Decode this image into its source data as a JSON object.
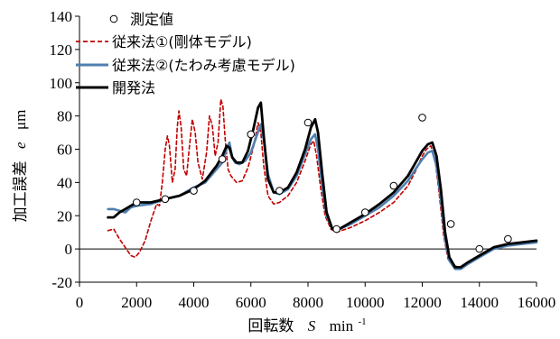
{
  "chart_data": {
    "type": "line",
    "xlabel": "回転数",
    "xlabel_symbol": "S",
    "xlabel_unit": "min",
    "xlabel_unit_exp": "-1",
    "ylabel": "加工誤差",
    "ylabel_symbol": "e",
    "ylabel_unit": "μm",
    "xlim": [
      0,
      16000
    ],
    "ylim": [
      -20,
      140
    ],
    "x_ticks": [
      0,
      2000,
      4000,
      6000,
      8000,
      10000,
      12000,
      14000,
      16000
    ],
    "y_ticks": [
      -20,
      0,
      20,
      40,
      60,
      80,
      100,
      120,
      140
    ],
    "legend_position": "top-left",
    "series": [
      {
        "name": "測定値",
        "kind": "scatter",
        "color": "#000000",
        "points": [
          [
            2000,
            28
          ],
          [
            3000,
            30
          ],
          [
            4000,
            35
          ],
          [
            5000,
            54
          ],
          [
            6000,
            69
          ],
          [
            7000,
            35
          ],
          [
            8000,
            76
          ],
          [
            9000,
            12
          ],
          [
            10000,
            22
          ],
          [
            11000,
            38
          ],
          [
            12000,
            79
          ],
          [
            13000,
            15
          ],
          [
            14000,
            0
          ],
          [
            15000,
            6
          ]
        ]
      },
      {
        "name": "従来法①(剛体モデル)",
        "kind": "line",
        "dash": "dashed",
        "color": "#c00000",
        "points": [
          [
            1000,
            11
          ],
          [
            1200,
            12
          ],
          [
            1400,
            6
          ],
          [
            1600,
            1
          ],
          [
            1800,
            -4
          ],
          [
            1950,
            -5
          ],
          [
            2100,
            -2
          ],
          [
            2300,
            5
          ],
          [
            2500,
            17
          ],
          [
            2700,
            27
          ],
          [
            2800,
            26
          ],
          [
            2900,
            40
          ],
          [
            3000,
            60
          ],
          [
            3080,
            68
          ],
          [
            3150,
            62
          ],
          [
            3250,
            40
          ],
          [
            3350,
            48
          ],
          [
            3420,
            73
          ],
          [
            3480,
            83
          ],
          [
            3560,
            73
          ],
          [
            3650,
            48
          ],
          [
            3750,
            44
          ],
          [
            3850,
            62
          ],
          [
            3950,
            78
          ],
          [
            4050,
            70
          ],
          [
            4150,
            52
          ],
          [
            4300,
            42
          ],
          [
            4450,
            58
          ],
          [
            4550,
            80
          ],
          [
            4650,
            74
          ],
          [
            4750,
            56
          ],
          [
            4850,
            64
          ],
          [
            4950,
            90
          ],
          [
            5020,
            86
          ],
          [
            5100,
            66
          ],
          [
            5200,
            48
          ],
          [
            5300,
            44
          ],
          [
            5500,
            40
          ],
          [
            5700,
            41
          ],
          [
            5900,
            49
          ],
          [
            6100,
            62
          ],
          [
            6250,
            76
          ],
          [
            6350,
            70
          ],
          [
            6450,
            50
          ],
          [
            6600,
            32
          ],
          [
            6800,
            27
          ],
          [
            7000,
            28
          ],
          [
            7300,
            32
          ],
          [
            7600,
            40
          ],
          [
            7900,
            53
          ],
          [
            8100,
            63
          ],
          [
            8200,
            65
          ],
          [
            8300,
            56
          ],
          [
            8450,
            36
          ],
          [
            8600,
            20
          ],
          [
            8800,
            12
          ],
          [
            9000,
            10
          ],
          [
            9500,
            13
          ],
          [
            10000,
            17
          ],
          [
            10500,
            22
          ],
          [
            11000,
            28
          ],
          [
            11500,
            38
          ],
          [
            11800,
            48
          ],
          [
            12000,
            56
          ],
          [
            12150,
            60
          ],
          [
            12300,
            62
          ],
          [
            12450,
            54
          ],
          [
            12600,
            32
          ],
          [
            12750,
            8
          ],
          [
            12900,
            -6
          ],
          [
            13100,
            -10
          ],
          [
            13300,
            -11
          ],
          [
            13500,
            -9
          ],
          [
            13800,
            -6
          ],
          [
            14200,
            -2
          ],
          [
            14600,
            1
          ],
          [
            15000,
            2
          ],
          [
            15500,
            3
          ],
          [
            16000,
            5
          ]
        ]
      },
      {
        "name": "従来法②(たわみ考慮モデル)",
        "kind": "line",
        "dash": "solid",
        "color": "#4f7fb0",
        "points": [
          [
            1000,
            24
          ],
          [
            1200,
            24
          ],
          [
            1400,
            23
          ],
          [
            1600,
            22
          ],
          [
            1800,
            25
          ],
          [
            2000,
            26
          ],
          [
            2500,
            27
          ],
          [
            3000,
            30
          ],
          [
            3500,
            32
          ],
          [
            4000,
            37
          ],
          [
            4400,
            40
          ],
          [
            4800,
            48
          ],
          [
            5000,
            52
          ],
          [
            5150,
            60
          ],
          [
            5250,
            64
          ],
          [
            5350,
            55
          ],
          [
            5450,
            52
          ],
          [
            5600,
            51
          ],
          [
            5800,
            53
          ],
          [
            6000,
            58
          ],
          [
            6200,
            68
          ],
          [
            6350,
            75
          ],
          [
            6450,
            66
          ],
          [
            6600,
            45
          ],
          [
            6800,
            34
          ],
          [
            7000,
            33
          ],
          [
            7300,
            36
          ],
          [
            7600,
            44
          ],
          [
            7900,
            57
          ],
          [
            8100,
            66
          ],
          [
            8250,
            69
          ],
          [
            8350,
            60
          ],
          [
            8500,
            38
          ],
          [
            8650,
            20
          ],
          [
            8850,
            12
          ],
          [
            9100,
            12
          ],
          [
            9500,
            15
          ],
          [
            10000,
            20
          ],
          [
            10500,
            25
          ],
          [
            11000,
            32
          ],
          [
            11500,
            41
          ],
          [
            11800,
            49
          ],
          [
            12000,
            54
          ],
          [
            12200,
            58
          ],
          [
            12350,
            59
          ],
          [
            12500,
            50
          ],
          [
            12650,
            30
          ],
          [
            12800,
            6
          ],
          [
            12950,
            -7
          ],
          [
            13150,
            -12
          ],
          [
            13350,
            -12
          ],
          [
            13600,
            -9
          ],
          [
            14000,
            -5
          ],
          [
            14500,
            0
          ],
          [
            15000,
            2
          ],
          [
            15500,
            3
          ],
          [
            16000,
            4
          ]
        ]
      },
      {
        "name": "開発法",
        "kind": "line",
        "dash": "solid",
        "color": "#000000",
        "points": [
          [
            1000,
            19
          ],
          [
            1200,
            19
          ],
          [
            1400,
            22
          ],
          [
            1600,
            24
          ],
          [
            1800,
            26
          ],
          [
            2000,
            28
          ],
          [
            2500,
            28
          ],
          [
            3000,
            30
          ],
          [
            3500,
            32
          ],
          [
            4000,
            36
          ],
          [
            4400,
            41
          ],
          [
            4800,
            50
          ],
          [
            5000,
            56
          ],
          [
            5150,
            62
          ],
          [
            5250,
            61
          ],
          [
            5350,
            55
          ],
          [
            5500,
            52
          ],
          [
            5700,
            52
          ],
          [
            5900,
            59
          ],
          [
            6100,
            73
          ],
          [
            6250,
            85
          ],
          [
            6350,
            88
          ],
          [
            6450,
            68
          ],
          [
            6600,
            42
          ],
          [
            6800,
            34
          ],
          [
            7000,
            34
          ],
          [
            7300,
            37
          ],
          [
            7600,
            46
          ],
          [
            7900,
            60
          ],
          [
            8100,
            73
          ],
          [
            8250,
            78
          ],
          [
            8350,
            70
          ],
          [
            8500,
            45
          ],
          [
            8650,
            22
          ],
          [
            8850,
            12
          ],
          [
            9100,
            12
          ],
          [
            9500,
            16
          ],
          [
            10000,
            21
          ],
          [
            10500,
            27
          ],
          [
            11000,
            34
          ],
          [
            11500,
            44
          ],
          [
            11800,
            53
          ],
          [
            12000,
            59
          ],
          [
            12200,
            63
          ],
          [
            12350,
            64
          ],
          [
            12500,
            56
          ],
          [
            12650,
            36
          ],
          [
            12800,
            10
          ],
          [
            12950,
            -5
          ],
          [
            13150,
            -11
          ],
          [
            13350,
            -11
          ],
          [
            13600,
            -8
          ],
          [
            14000,
            -4
          ],
          [
            14500,
            1
          ],
          [
            15000,
            3
          ],
          [
            15500,
            4
          ],
          [
            16000,
            5
          ]
        ]
      }
    ]
  }
}
